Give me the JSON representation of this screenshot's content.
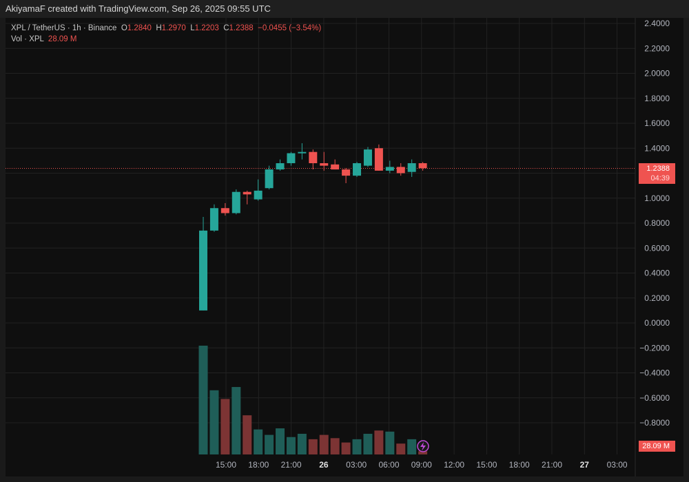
{
  "header": {
    "credit": "AkiyamaF created with TradingView.com, Sep 26, 2025 09:55 UTC"
  },
  "legend": {
    "symbol": "XPL / TetherUS · 1h · Binance",
    "o_label": "O",
    "o": "1.2840",
    "h_label": "H",
    "h": "1.2970",
    "l_label": "L",
    "l": "1.2203",
    "c_label": "C",
    "c": "1.2388",
    "change": "−0.0455 (−3.54%)",
    "vol_label": "Vol · XPL",
    "vol": "28.09 M"
  },
  "price_badge": {
    "price": "1.2388",
    "countdown": "04:39"
  },
  "volume_badge": "28.09 M",
  "colors": {
    "up": "#26a69a",
    "down": "#ef5350",
    "vol_up": "#1f5e58",
    "vol_down": "#7c3434",
    "background": "#0f0f0f",
    "grid": "#222222",
    "text": "#b2b5be"
  },
  "chart_data": {
    "type": "candlestick",
    "timeframe": "1h",
    "y_ticks": [
      "2.4000",
      "2.2000",
      "2.0000",
      "1.8000",
      "1.6000",
      "1.4000",
      "1.2000",
      "1.0000",
      "0.8000",
      "0.6000",
      "0.4000",
      "0.2000",
      "0.0000",
      "−0.2000",
      "−0.4000",
      "−0.6000",
      "−0.8000"
    ],
    "x_ticks": [
      "15:00",
      "18:00",
      "21:00",
      "26",
      "03:00",
      "06:00",
      "09:00",
      "12:00",
      "15:00",
      "18:00",
      "21:00",
      "27",
      "03:00"
    ],
    "ylim": [
      -1.05,
      2.45
    ],
    "last_price": 1.2388,
    "candles": [
      {
        "o": 0.1,
        "h": 0.85,
        "l": 0.1,
        "c": 0.74,
        "v": 1.0
      },
      {
        "o": 0.74,
        "h": 0.95,
        "l": 0.73,
        "c": 0.92,
        "v": 0.59
      },
      {
        "o": 0.92,
        "h": 0.96,
        "l": 0.86,
        "c": 0.88,
        "v": 0.51
      },
      {
        "o": 0.88,
        "h": 1.07,
        "l": 0.87,
        "c": 1.05,
        "v": 0.62
      },
      {
        "o": 1.05,
        "h": 1.06,
        "l": 0.95,
        "c": 1.03,
        "v": 0.36
      },
      {
        "o": 0.99,
        "h": 1.15,
        "l": 0.98,
        "c": 1.06,
        "v": 0.23
      },
      {
        "o": 1.08,
        "h": 1.26,
        "l": 1.07,
        "c": 1.23,
        "v": 0.18
      },
      {
        "o": 1.23,
        "h": 1.31,
        "l": 1.22,
        "c": 1.28,
        "v": 0.24
      },
      {
        "o": 1.28,
        "h": 1.37,
        "l": 1.26,
        "c": 1.36,
        "v": 0.16
      },
      {
        "o": 1.36,
        "h": 1.44,
        "l": 1.31,
        "c": 1.37,
        "v": 0.19
      },
      {
        "o": 1.37,
        "h": 1.39,
        "l": 1.23,
        "c": 1.28,
        "v": 0.14
      },
      {
        "o": 1.28,
        "h": 1.37,
        "l": 1.22,
        "c": 1.26,
        "v": 0.18
      },
      {
        "o": 1.27,
        "h": 1.31,
        "l": 1.23,
        "c": 1.23,
        "v": 0.15
      },
      {
        "o": 1.23,
        "h": 1.24,
        "l": 1.12,
        "c": 1.18,
        "v": 0.11
      },
      {
        "o": 1.18,
        "h": 1.29,
        "l": 1.17,
        "c": 1.28,
        "v": 0.14
      },
      {
        "o": 1.26,
        "h": 1.41,
        "l": 1.25,
        "c": 1.39,
        "v": 0.19
      },
      {
        "o": 1.4,
        "h": 1.43,
        "l": 1.22,
        "c": 1.22,
        "v": 0.22
      },
      {
        "o": 1.22,
        "h": 1.3,
        "l": 1.2,
        "c": 1.25,
        "v": 0.21
      },
      {
        "o": 1.25,
        "h": 1.28,
        "l": 1.18,
        "c": 1.2,
        "v": 0.1
      },
      {
        "o": 1.21,
        "h": 1.31,
        "l": 1.17,
        "c": 1.28,
        "v": 0.14
      },
      {
        "o": 1.28,
        "h": 1.29,
        "l": 1.22,
        "c": 1.24,
        "v": 0.03
      }
    ]
  }
}
